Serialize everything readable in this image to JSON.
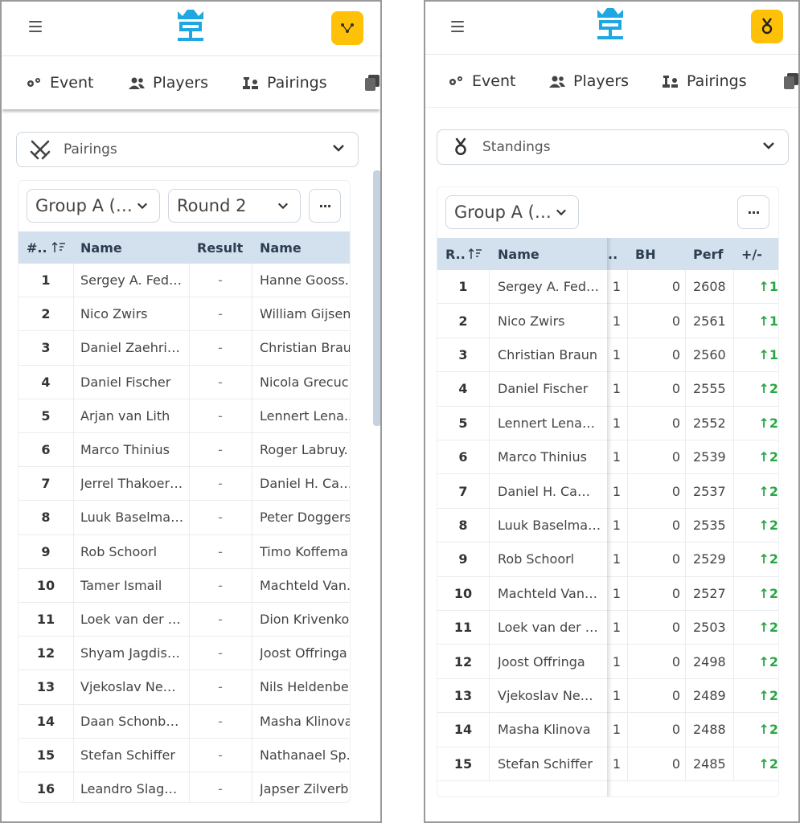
{
  "colors": {
    "accent": "#ffc107",
    "brand": "#1ea7e1",
    "header_bg": "#d3e1ef",
    "positive": "#28a745"
  },
  "nav": {
    "event": "Event",
    "players": "Players",
    "pairings": "Pairings"
  },
  "left": {
    "selector_label": "Pairings",
    "group_label": "Group A (…",
    "round_label": "Round 2",
    "more_label": "···",
    "columns": {
      "board": "#..",
      "white": "Name",
      "result": "Result",
      "black": "Name"
    },
    "rows": [
      {
        "board": "1",
        "white": "Sergey A. Fed…",
        "result": "-",
        "black": "Hanne Gooss."
      },
      {
        "board": "2",
        "white": "Nico Zwirs",
        "result": "-",
        "black": "William Gijsen"
      },
      {
        "board": "3",
        "white": "Daniel Zaehri…",
        "result": "-",
        "black": "Christian Brau"
      },
      {
        "board": "4",
        "white": "Daniel Fischer",
        "result": "-",
        "black": "Nicola Grecuc."
      },
      {
        "board": "5",
        "white": "Arjan van Lith",
        "result": "-",
        "black": "Lennert Lena.."
      },
      {
        "board": "6",
        "white": "Marco Thinius",
        "result": "-",
        "black": "Roger Labruy."
      },
      {
        "board": "7",
        "white": "Jerrel Thakoer…",
        "result": "-",
        "black": "Daniel H. Ca…"
      },
      {
        "board": "8",
        "white": "Luuk Baselma…",
        "result": "-",
        "black": "Peter Doggers"
      },
      {
        "board": "9",
        "white": "Rob Schoorl",
        "result": "-",
        "black": "Timo Koffema"
      },
      {
        "board": "10",
        "white": "Tamer Ismail",
        "result": "-",
        "black": "Machteld Van."
      },
      {
        "board": "11",
        "white": "Loek van der …",
        "result": "-",
        "black": "Dion Krivenko"
      },
      {
        "board": "12",
        "white": "Shyam Jagdis…",
        "result": "-",
        "black": "Joost Offringa"
      },
      {
        "board": "13",
        "white": "Vjekoslav Ne…",
        "result": "-",
        "black": "Nils Heldenbe"
      },
      {
        "board": "14",
        "white": "Daan Schonb…",
        "result": "-",
        "black": "Masha Klinova"
      },
      {
        "board": "15",
        "white": "Stefan Schiffer",
        "result": "-",
        "black": "Nathanael Sp."
      },
      {
        "board": "16",
        "white": "Leandro Slag…",
        "result": "-",
        "black": "Japser Zilverb."
      }
    ]
  },
  "right": {
    "selector_label": "Standings",
    "group_label": "Group A (…",
    "more_label": "···",
    "columns": {
      "rank": "R..",
      "name": "Name",
      "trunc": "..",
      "bh": "BH",
      "perf": "Perf",
      "delta": "+/-"
    },
    "rows": [
      {
        "rank": "1",
        "name": "Sergey A. Fed…",
        "pts": "1",
        "bh": "0",
        "perf": "2608",
        "delta": "↑1"
      },
      {
        "rank": "2",
        "name": "Nico Zwirs",
        "pts": "1",
        "bh": "0",
        "perf": "2561",
        "delta": "↑1"
      },
      {
        "rank": "3",
        "name": "Christian Braun",
        "pts": "1",
        "bh": "0",
        "perf": "2560",
        "delta": "↑1"
      },
      {
        "rank": "4",
        "name": "Daniel Fischer",
        "pts": "1",
        "bh": "0",
        "perf": "2555",
        "delta": "↑2"
      },
      {
        "rank": "5",
        "name": "Lennert Lena…",
        "pts": "1",
        "bh": "0",
        "perf": "2552",
        "delta": "↑2"
      },
      {
        "rank": "6",
        "name": "Marco Thinius",
        "pts": "1",
        "bh": "0",
        "perf": "2539",
        "delta": "↑2"
      },
      {
        "rank": "7",
        "name": "Daniel H. Ca…",
        "pts": "1",
        "bh": "0",
        "perf": "2537",
        "delta": "↑2"
      },
      {
        "rank": "8",
        "name": "Luuk Baselma…",
        "pts": "1",
        "bh": "0",
        "perf": "2535",
        "delta": "↑2"
      },
      {
        "rank": "9",
        "name": "Rob Schoorl",
        "pts": "1",
        "bh": "0",
        "perf": "2529",
        "delta": "↑2"
      },
      {
        "rank": "10",
        "name": "Machteld Van…",
        "pts": "1",
        "bh": "0",
        "perf": "2527",
        "delta": "↑2"
      },
      {
        "rank": "11",
        "name": "Loek van der …",
        "pts": "1",
        "bh": "0",
        "perf": "2503",
        "delta": "↑2"
      },
      {
        "rank": "12",
        "name": "Joost Offringa",
        "pts": "1",
        "bh": "0",
        "perf": "2498",
        "delta": "↑2"
      },
      {
        "rank": "13",
        "name": "Vjekoslav Ne…",
        "pts": "1",
        "bh": "0",
        "perf": "2489",
        "delta": "↑2"
      },
      {
        "rank": "14",
        "name": "Masha Klinova",
        "pts": "1",
        "bh": "0",
        "perf": "2488",
        "delta": "↑2"
      },
      {
        "rank": "15",
        "name": "Stefan Schiffer",
        "pts": "1",
        "bh": "0",
        "perf": "2485",
        "delta": "↑2"
      }
    ]
  }
}
